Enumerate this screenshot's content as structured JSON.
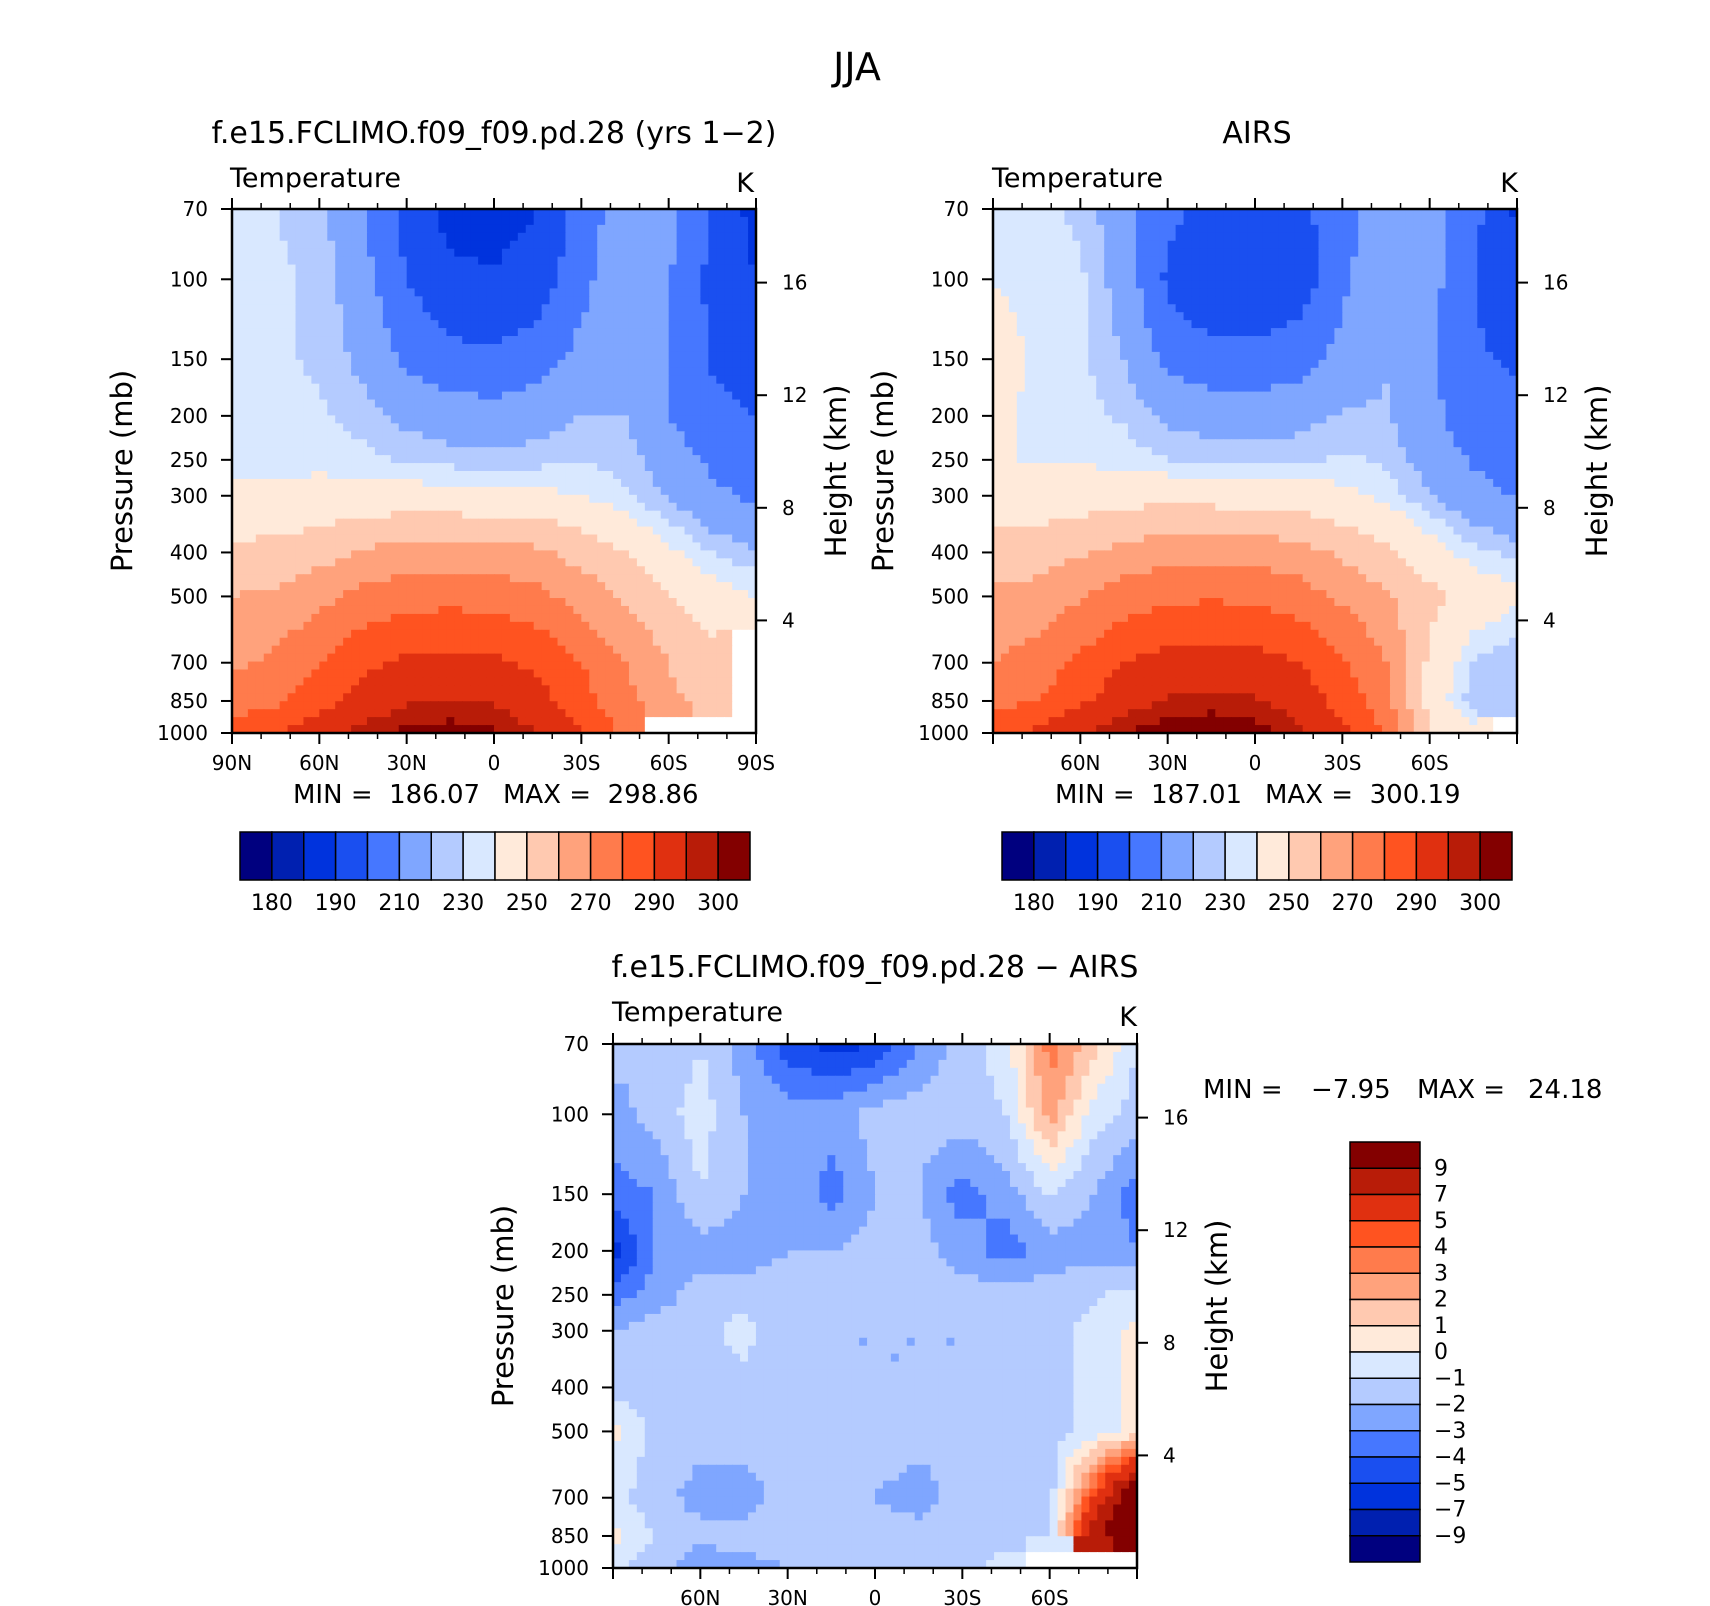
{
  "figure": {
    "title": "JJA"
  },
  "colors": {
    "temperature_palette": [
      "#00007f",
      "#0020b0",
      "#0033dd",
      "#1a4ff0",
      "#4677ff",
      "#7fa6ff",
      "#b4cbff",
      "#d9e8ff",
      "#ffeada",
      "#ffc9b0",
      "#ffa27c",
      "#ff7b4c",
      "#ff5320",
      "#e03010",
      "#b81c08",
      "#830000"
    ],
    "difference_palette": [
      "#00007f",
      "#0020b0",
      "#0033dd",
      "#1a4ff0",
      "#4677ff",
      "#7fa6ff",
      "#b4cbff",
      "#d9e8ff",
      "#ffeada",
      "#ffc9b0",
      "#ffa27c",
      "#ff7b4c",
      "#ff5320",
      "#e03010",
      "#b81c08",
      "#830000"
    ],
    "missing": "#ffffff"
  },
  "chart_data": [
    {
      "type": "heatmap",
      "title": "f.e15.FCLIMO.f09_f09.pd.28 (yrs 1−2)",
      "left_label": "Temperature",
      "units": "K",
      "ylabel": "Pressure (mb)",
      "ylabel_right": "Height (km)",
      "x_ticks": [
        "90N",
        "60N",
        "30N",
        "0",
        "30S",
        "60S",
        "90S"
      ],
      "y_ticks": [
        "70",
        "100",
        "150",
        "200",
        "250",
        "300",
        "400",
        "500",
        "700",
        "850",
        "1000"
      ],
      "y2_ticks": [
        "16",
        "12",
        "8",
        "4"
      ],
      "min_label": "MIN =  186.07",
      "max_label": "MAX =  298.86",
      "min": 186.07,
      "max": 298.86,
      "colorbar_labels": [
        "180",
        "190",
        "210",
        "230",
        "250",
        "270",
        "290",
        "300"
      ],
      "x": [
        -90,
        -75,
        -60,
        -45,
        -30,
        -15,
        0,
        15,
        30,
        45,
        60,
        75,
        90
      ],
      "pressure": [
        70,
        100,
        150,
        200,
        250,
        300,
        400,
        500,
        700,
        850,
        1000
      ],
      "values": [
        [
          225,
          225,
          222,
          210,
          196,
          187,
          186,
          190,
          205,
          215,
          212,
          200,
          186
        ],
        [
          226,
          226,
          224,
          214,
          200,
          192,
          191,
          194,
          207,
          217,
          211,
          197,
          190
        ],
        [
          226,
          226,
          224,
          218,
          208,
          203,
          202,
          205,
          213,
          218,
          210,
          199,
          197
        ],
        [
          227,
          227,
          226,
          222,
          218,
          215,
          214,
          216,
          220,
          220,
          210,
          202,
          200
        ],
        [
          228,
          228,
          228,
          227,
          224,
          223,
          222,
          223,
          225,
          223,
          215,
          208,
          205
        ],
        [
          232,
          232,
          233,
          233,
          234,
          233,
          232,
          232,
          230,
          226,
          219,
          212,
          208
        ],
        [
          242,
          243,
          246,
          251,
          254,
          255,
          254,
          252,
          246,
          240,
          232,
          225,
          221
        ],
        [
          250,
          252,
          257,
          263,
          266,
          267,
          266,
          263,
          256,
          249,
          241,
          234,
          230
        ],
        [
          258,
          262,
          270,
          278,
          282,
          283,
          282,
          278,
          270,
          260,
          250,
          243,
          null
        ],
        [
          264,
          268,
          276,
          284,
          289,
          290,
          289,
          284,
          274,
          263,
          252,
          246,
          null
        ],
        [
          275,
          280,
          287,
          293,
          297,
          298,
          296,
          290,
          280,
          268,
          null,
          null,
          null
        ]
      ]
    },
    {
      "type": "heatmap",
      "title": "AIRS",
      "left_label": "Temperature",
      "units": "K",
      "ylabel": "Pressure (mb)",
      "ylabel_right": "Height (km)",
      "x_ticks": [
        "",
        "60N",
        "30N",
        "0",
        "30S",
        "60S",
        ""
      ],
      "y_ticks": [
        "70",
        "100",
        "150",
        "200",
        "250",
        "300",
        "400",
        "500",
        "700",
        "850",
        "1000"
      ],
      "y2_ticks": [
        "16",
        "12",
        "8",
        "4"
      ],
      "min_label": "MIN =  187.01",
      "max_label": "MAX =  300.19",
      "min": 187.01,
      "max": 300.19,
      "colorbar_labels": [
        "180",
        "190",
        "210",
        "230",
        "250",
        "270",
        "290",
        "300"
      ],
      "x": [
        -90,
        -75,
        -60,
        -45,
        -30,
        -15,
        0,
        15,
        30,
        45,
        60,
        75,
        90
      ],
      "pressure": [
        70,
        100,
        150,
        200,
        250,
        300,
        400,
        500,
        700,
        850,
        1000
      ],
      "values": [
        [
          226,
          226,
          224,
          214,
          203,
          196,
          195,
          197,
          206,
          215,
          215,
          203,
          188
        ],
        [
          230,
          228,
          226,
          216,
          198,
          192,
          192,
          194,
          208,
          218,
          214,
          200,
          194
        ],
        [
          233,
          229,
          226,
          220,
          207,
          203,
          203,
          206,
          213,
          219,
          212,
          201,
          199
        ],
        [
          231,
          229,
          227,
          224,
          218,
          216,
          215,
          217,
          221,
          221,
          213,
          204,
          202
        ],
        [
          230,
          230,
          229,
          228,
          225,
          224,
          223,
          224,
          226,
          224,
          216,
          209,
          206
        ],
        [
          234,
          234,
          235,
          236,
          237,
          236,
          235,
          234,
          232,
          228,
          221,
          213,
          209
        ],
        [
          244,
          245,
          249,
          253,
          256,
          257,
          256,
          254,
          248,
          242,
          234,
          227,
          223
        ],
        [
          252,
          254,
          259,
          265,
          268,
          269,
          268,
          265,
          258,
          251,
          243,
          236,
          232
        ],
        [
          260,
          264,
          272,
          280,
          284,
          285,
          284,
          280,
          272,
          260,
          238,
          225,
          220
        ],
        [
          266,
          270,
          278,
          286,
          291,
          292,
          291,
          286,
          276,
          264,
          236,
          222,
          221
        ],
        [
          278,
          282,
          289,
          295,
          299,
          300,
          298,
          292,
          282,
          270,
          240,
          232,
          null
        ]
      ]
    },
    {
      "type": "heatmap",
      "title": "f.e15.FCLIMO.f09_f09.pd.28 − AIRS",
      "left_label": "Temperature",
      "units": "K",
      "ylabel": "Pressure (mb)",
      "ylabel_right": "Height (km)",
      "x_ticks": [
        "",
        "60N",
        "30N",
        "0",
        "30S",
        "60S",
        ""
      ],
      "y_ticks": [
        "70",
        "100",
        "150",
        "200",
        "250",
        "300",
        "400",
        "500",
        "700",
        "850",
        "1000"
      ],
      "y2_ticks": [
        "16",
        "12",
        "8",
        "4"
      ],
      "min_label": "MIN =",
      "min_value": "−7.95",
      "max_label": "MAX =",
      "max_value": "24.18",
      "min": -7.95,
      "max": 24.18,
      "colorbar_labels": [
        "9",
        "7",
        "5",
        "4",
        "3",
        "2",
        "1",
        "0",
        "−1",
        "−2",
        "−3",
        "−4",
        "−5",
        "−7",
        "−9"
      ],
      "x": [
        -90,
        -75,
        -60,
        -45,
        -30,
        -15,
        0,
        15,
        30,
        45,
        60,
        75,
        90
      ],
      "pressure": [
        70,
        100,
        150,
        200,
        250,
        300,
        400,
        500,
        700,
        850,
        1000
      ],
      "values": [
        [
          -1.5,
          -2,
          -1,
          -2.5,
          -4.5,
          -5.5,
          -5,
          -3,
          -1.5,
          -0.5,
          3.5,
          1.5,
          -1
        ],
        [
          -2.5,
          -1.5,
          -0.5,
          -2,
          -2.5,
          -2.5,
          -1.5,
          -1.5,
          -1.5,
          -1,
          2.5,
          -0.5,
          -1.5
        ],
        [
          -3.5,
          -3,
          -1,
          -2,
          -2,
          -3.5,
          -2,
          -2,
          -3.5,
          -2.5,
          -1,
          -2,
          -3.5
        ],
        [
          -5.5,
          -3,
          -2.5,
          -2.5,
          -2,
          -2,
          -1.5,
          -1.5,
          -2.5,
          -3.5,
          -2.5,
          -2.5,
          -3
        ],
        [
          -3.5,
          -2.5,
          -1.5,
          -1.5,
          -1.5,
          -1.5,
          -1.5,
          -1.5,
          -1.5,
          -1.5,
          -1.5,
          -1.2,
          -0.5
        ],
        [
          -2,
          -1.5,
          -1.5,
          -0.5,
          -2,
          -2,
          -2,
          -2,
          -2,
          -1.5,
          -1.5,
          -0.5,
          0.3
        ],
        [
          -1.5,
          -1.5,
          -1.5,
          -1.5,
          -1.5,
          -2,
          -2,
          -2,
          -2,
          -1.5,
          -1.5,
          -0.5,
          0.3
        ],
        [
          0.3,
          -1.5,
          -1.5,
          -1.5,
          -1.5,
          -1.5,
          -1.5,
          -1.5,
          -2,
          -2,
          -1.5,
          -0.5,
          0.4
        ],
        [
          -0.8,
          -1.5,
          -2.5,
          -2.5,
          -1.5,
          -1.5,
          -2,
          -2.5,
          -1.5,
          -1.5,
          -1.5,
          5,
          12
        ],
        [
          0.5,
          -1.2,
          -1.5,
          -1.5,
          -1.2,
          -1.5,
          -1.5,
          -1.5,
          -1.5,
          -1.5,
          -1,
          8,
          14
        ],
        [
          -1,
          -1.5,
          -3,
          -2.5,
          -2,
          -1.5,
          -1.5,
          -1.5,
          -1.5,
          -0.5,
          null,
          null,
          null
        ]
      ]
    }
  ]
}
